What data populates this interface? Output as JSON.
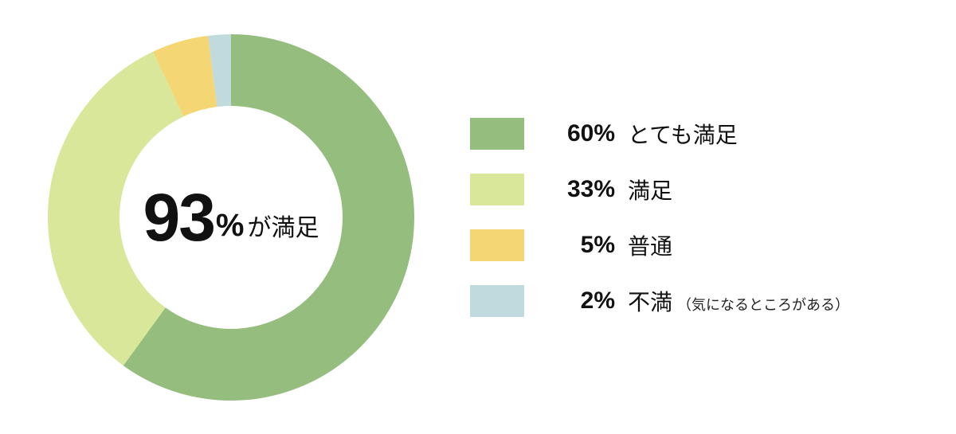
{
  "chart": {
    "type": "donut",
    "background_color": "#ffffff",
    "outer_radius": 230,
    "inner_radius": 140,
    "start_angle_deg": 0,
    "direction": "clockwise",
    "center_text": {
      "big_number": "93",
      "percent_symbol": "%",
      "suffix": "が満足",
      "big_fontsize": 84,
      "suffix_fontsize": 30,
      "color": "#111111"
    },
    "slices": [
      {
        "value": 60,
        "label": "とても満足",
        "color": "#95bd7e",
        "note": ""
      },
      {
        "value": 33,
        "label": "満足",
        "color": "#d8e79a",
        "note": ""
      },
      {
        "value": 5,
        "label": "普通",
        "color": "#f4d774",
        "note": ""
      },
      {
        "value": 2,
        "label": "不満",
        "color": "#c1dadd",
        "note": "（気になるところがある）"
      }
    ]
  },
  "legend": {
    "swatch_width": 68,
    "swatch_height": 40,
    "percent_fontsize": 30,
    "label_fontsize": 28,
    "note_fontsize": 18
  }
}
